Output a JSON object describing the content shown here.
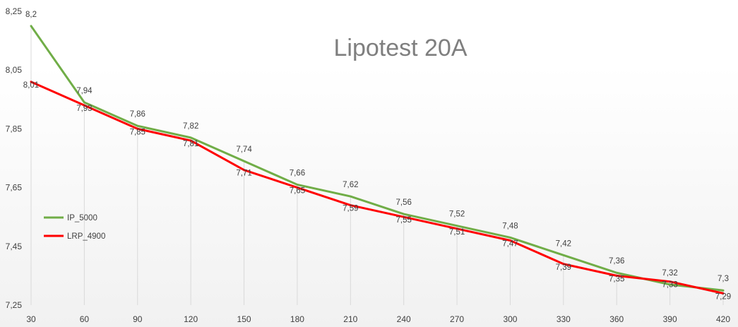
{
  "chart_data": {
    "type": "line",
    "title": "Lipotest 20A",
    "categories": [
      30,
      60,
      90,
      120,
      150,
      180,
      210,
      240,
      270,
      300,
      330,
      360,
      390,
      420
    ],
    "y_ticks": [
      "8,25",
      "8,05",
      "7,85",
      "7,65",
      "7,45",
      "7,25"
    ],
    "ylim": [
      7.25,
      8.25
    ],
    "grid": "vertical drop lines",
    "legend_position": "left",
    "series": [
      {
        "name": "IP_5000",
        "color": "#70ad47",
        "values": [
          8.2,
          7.94,
          7.86,
          7.82,
          7.74,
          7.66,
          7.62,
          7.56,
          7.52,
          7.48,
          7.42,
          7.36,
          7.32,
          7.3
        ],
        "labels": [
          "8,2",
          "7,94",
          "7,86",
          "7,82",
          "7,74",
          "7,66",
          "7,62",
          "7,56",
          "7,52",
          "7,48",
          "7,42",
          "7,36",
          "7,32",
          "7,3"
        ]
      },
      {
        "name": "LRP_4900",
        "color": "#ff0000",
        "values": [
          8.01,
          7.93,
          7.85,
          7.81,
          7.71,
          7.65,
          7.59,
          7.55,
          7.51,
          7.47,
          7.39,
          7.35,
          7.33,
          7.29
        ],
        "labels": [
          "8,01",
          "7,93",
          "7,85",
          "7,81",
          "7,71",
          "7,65",
          "7,59",
          "7,55",
          "7,51",
          "7,47",
          "7,39",
          "7,35",
          "7,33",
          "7,29"
        ]
      }
    ]
  }
}
